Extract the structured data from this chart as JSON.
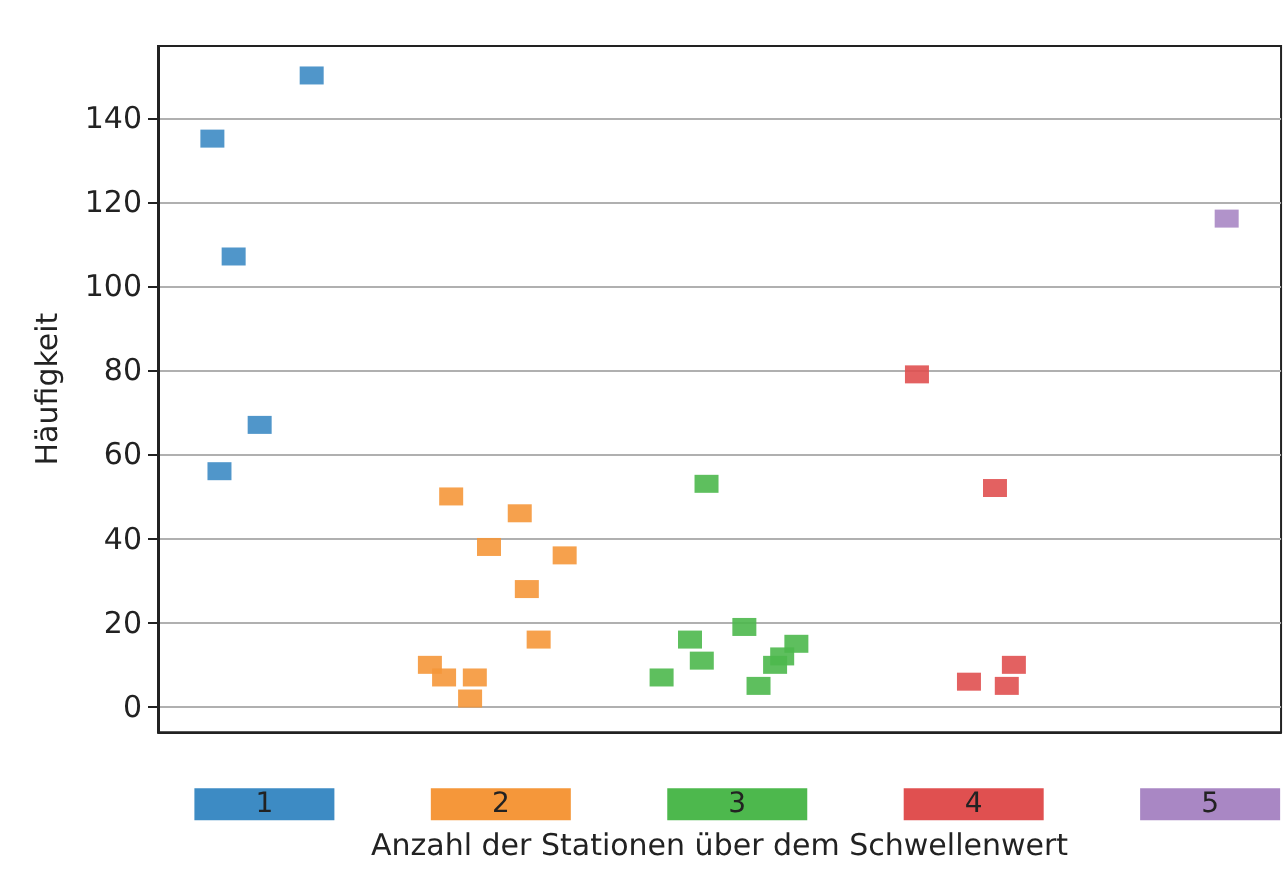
{
  "chart_data": {
    "type": "scatter",
    "xlabel": "Anzahl der Stationen über dem Schwellenwert",
    "ylabel": "Häufigkeit",
    "xlim": [
      0.55,
      5.3
    ],
    "xticks": [
      {
        "value": 1,
        "label": "1"
      },
      {
        "value": 2,
        "label": "2"
      },
      {
        "value": 3,
        "label": "3"
      },
      {
        "value": 4,
        "label": "4"
      },
      {
        "value": 5,
        "label": "5"
      }
    ],
    "ylim": [
      -6,
      157
    ],
    "yticks": [
      0,
      20,
      40,
      60,
      80,
      100,
      120,
      140
    ],
    "grid": "y",
    "marker": "square",
    "series": [
      {
        "color": "#3d8bc4",
        "x": [
          0.78,
          0.87,
          0.98,
          0.81,
          1.2
        ],
        "values": [
          135,
          107,
          67,
          56,
          150
        ]
      },
      {
        "color": "#f5973a",
        "x": [
          1.79,
          2.08,
          1.95,
          2.27,
          2.11,
          2.16,
          1.7,
          1.76,
          1.89,
          1.87
        ],
        "values": [
          50,
          46,
          38,
          36,
          28,
          16,
          10,
          7,
          7,
          2
        ]
      },
      {
        "color": "#4db84d",
        "x": [
          2.87,
          3.03,
          2.8,
          3.25,
          2.85,
          3.19,
          3.16,
          2.68,
          3.09
        ],
        "values": [
          53,
          19,
          16,
          15,
          11,
          12,
          10,
          7,
          5
        ]
      },
      {
        "color": "#e05050",
        "x": [
          3.76,
          4.09,
          4.17,
          3.98,
          4.14
        ],
        "values": [
          79,
          52,
          10,
          6,
          5
        ]
      },
      {
        "color": "#a987c4",
        "x": [
          5.07
        ],
        "values": [
          116
        ]
      }
    ]
  }
}
